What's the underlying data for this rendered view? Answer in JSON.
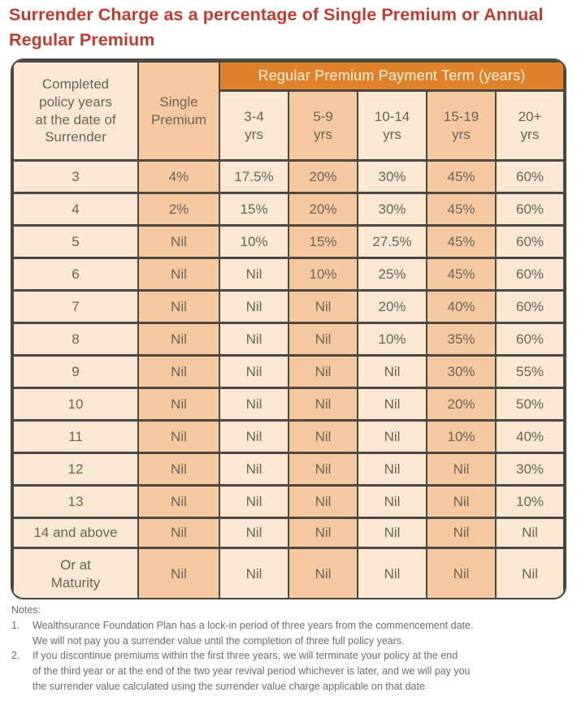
{
  "title": "Surrender Charge as a percentage of Single Premium or Annual Regular Premium",
  "colors": {
    "title_red": "#C23B33",
    "header_orange": "#E0812B",
    "header_orange_text": "#FCF2E0",
    "cell_light": "#FAE8D3",
    "cell_dark": "#F5C99D",
    "border_dark": "#4C4740",
    "cell_text": "#6B6359",
    "notes_text": "#6C6C6C"
  },
  "table": {
    "corner_header": "Completed\npolicy years\nat the date of\nSurrender",
    "single_premium_header": "Single\nPremium",
    "group_header": "Regular Premium Payment Term (years)",
    "term_headers": [
      "3-4\nyrs",
      "5-9\nyrs",
      "10-14\nyrs",
      "15-19\nyrs",
      "20+\nyrs"
    ],
    "rows": [
      {
        "label": "3",
        "values": [
          "4%",
          "17.5%",
          "20%",
          "30%",
          "45%",
          "60%"
        ]
      },
      {
        "label": "4",
        "values": [
          "2%",
          "15%",
          "20%",
          "30%",
          "45%",
          "60%"
        ]
      },
      {
        "label": "5",
        "values": [
          "Nil",
          "10%",
          "15%",
          "27.5%",
          "45%",
          "60%"
        ]
      },
      {
        "label": "6",
        "values": [
          "Nil",
          "Nil",
          "10%",
          "25%",
          "45%",
          "60%"
        ]
      },
      {
        "label": "7",
        "values": [
          "Nil",
          "Nil",
          "Nil",
          "20%",
          "40%",
          "60%"
        ]
      },
      {
        "label": "8",
        "values": [
          "Nil",
          "Nil",
          "Nil",
          "10%",
          "35%",
          "60%"
        ]
      },
      {
        "label": "9",
        "values": [
          "Nil",
          "Nil",
          "Nil",
          "Nil",
          "30%",
          "55%"
        ]
      },
      {
        "label": "10",
        "values": [
          "Nil",
          "Nil",
          "Nil",
          "Nil",
          "20%",
          "50%"
        ]
      },
      {
        "label": "11",
        "values": [
          "Nil",
          "Nil",
          "Nil",
          "Nil",
          "10%",
          "40%"
        ]
      },
      {
        "label": "12",
        "values": [
          "Nil",
          "Nil",
          "Nil",
          "Nil",
          "Nil",
          "30%"
        ]
      },
      {
        "label": "13",
        "values": [
          "Nil",
          "Nil",
          "Nil",
          "Nil",
          "Nil",
          "10%"
        ]
      },
      {
        "label": "14 and above",
        "values": [
          "Nil",
          "Nil",
          "Nil",
          "Nil",
          "Nil",
          "Nil"
        ]
      },
      {
        "label": "Or at\nMaturity",
        "values": [
          "Nil",
          "Nil",
          "Nil",
          "Nil",
          "Nil",
          "Nil"
        ]
      }
    ]
  },
  "notes": {
    "heading": "Notes:",
    "items": [
      {
        "num": "1.",
        "text": "Wealthsurance Foundation Plan has a lock-in period of three years from the commencement date.\nWe will not pay you a surrender value until the completion of three full policy years."
      },
      {
        "num": "2.",
        "text": "If you discontinue premiums within the first three years, we will terminate your policy at the end\nof the third year or at the end of the two year revival period whichever is later, and we will pay you\nthe surrender value calculated using the surrender value charge applicable on that date"
      }
    ]
  }
}
